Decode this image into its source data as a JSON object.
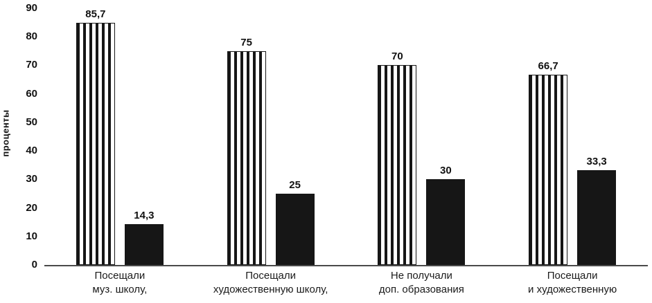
{
  "chart_data": {
    "type": "bar",
    "title": "",
    "xlabel": "",
    "ylabel": "проценты",
    "ylim": [
      0,
      90
    ],
    "yticks": [
      0,
      10,
      20,
      30,
      40,
      50,
      60,
      70,
      80,
      90
    ],
    "grid": false,
    "legend_position": "none",
    "categories": [
      "Посещали\nмуз. школу,",
      "Посещали\nхудожественную школу,",
      "Не получали\nдоп. образования",
      "Посещали\nи художественную"
    ],
    "series": [
      {
        "name": "striped-bars",
        "style": "striped",
        "values": [
          85.7,
          75,
          70,
          66.7
        ],
        "labels": [
          "85,7",
          "75",
          "70",
          "66,7"
        ]
      },
      {
        "name": "solid-bars",
        "style": "solid",
        "values": [
          14.3,
          25,
          30,
          33.3
        ],
        "labels": [
          "14,3",
          "25",
          "30",
          "33,3"
        ]
      }
    ],
    "colors": {
      "bar_fill": "#161616",
      "bar_stripe_bg": "#ffffff",
      "axis_line": "#4a4a4a",
      "text": "#111111"
    }
  }
}
